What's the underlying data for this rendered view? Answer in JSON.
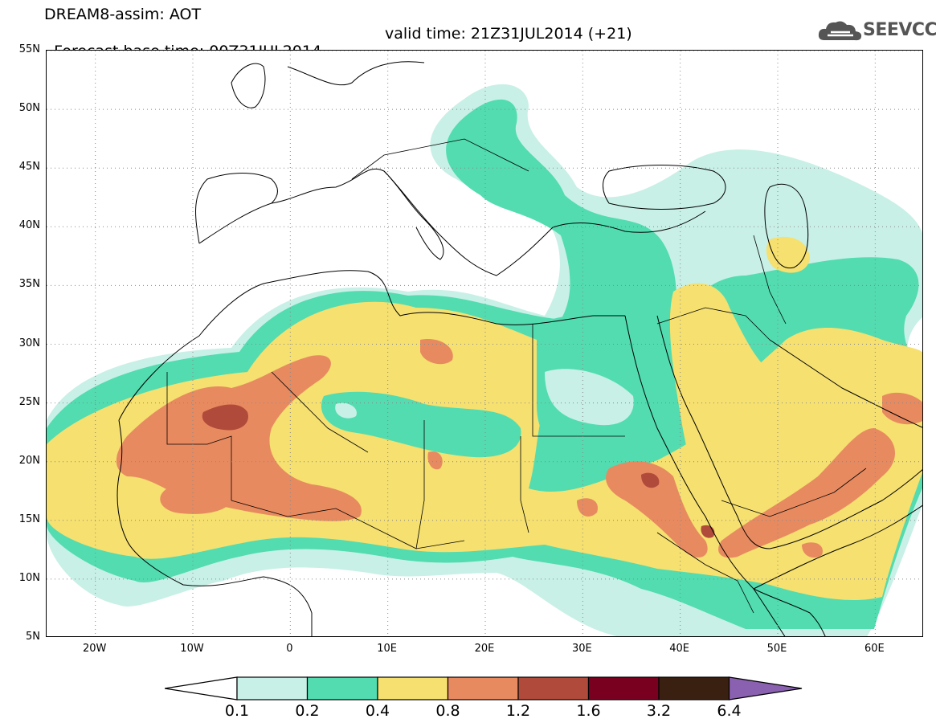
{
  "header": {
    "title_line1": "DREAM8-assim: AOT",
    "title_line2_base": "Forecast base time: 00Z31JUL2014",
    "title_line2_valid": "valid time: 21Z31JUL2014 (+21)"
  },
  "logo": {
    "text": "SEEVCCC",
    "icon": "cloud-logo-icon",
    "color": "#555555"
  },
  "axes": {
    "lat_labels": [
      "55N",
      "50N",
      "45N",
      "40N",
      "35N",
      "30N",
      "25N",
      "20N",
      "15N",
      "10N",
      "5N"
    ],
    "lon_labels": [
      "20W",
      "10W",
      "0",
      "10E",
      "20E",
      "30E",
      "40E",
      "50E",
      "60E"
    ],
    "lat_range": [
      5,
      55
    ],
    "lon_range": [
      -25,
      65
    ],
    "grid": true
  },
  "colorbar": {
    "labels": [
      "0.1",
      "0.2",
      "0.4",
      "0.8",
      "1.2",
      "1.6",
      "3.2",
      "6.4"
    ],
    "colors": [
      "#ffffff",
      "#c8f0e6",
      "#52dcb0",
      "#f5e070",
      "#e88a60",
      "#b04a3a",
      "#7a0020",
      "#3a2010",
      "#8a60b0"
    ]
  },
  "map_data": {
    "field": "AOT",
    "levels": [
      0.1,
      0.2,
      0.4,
      0.8,
      1.2,
      1.6,
      3.2,
      6.4
    ],
    "level_colors": [
      "#c8f0e6",
      "#52dcb0",
      "#f5e070",
      "#e88a60",
      "#b04a3a",
      "#7a0020",
      "#3a2010"
    ]
  }
}
